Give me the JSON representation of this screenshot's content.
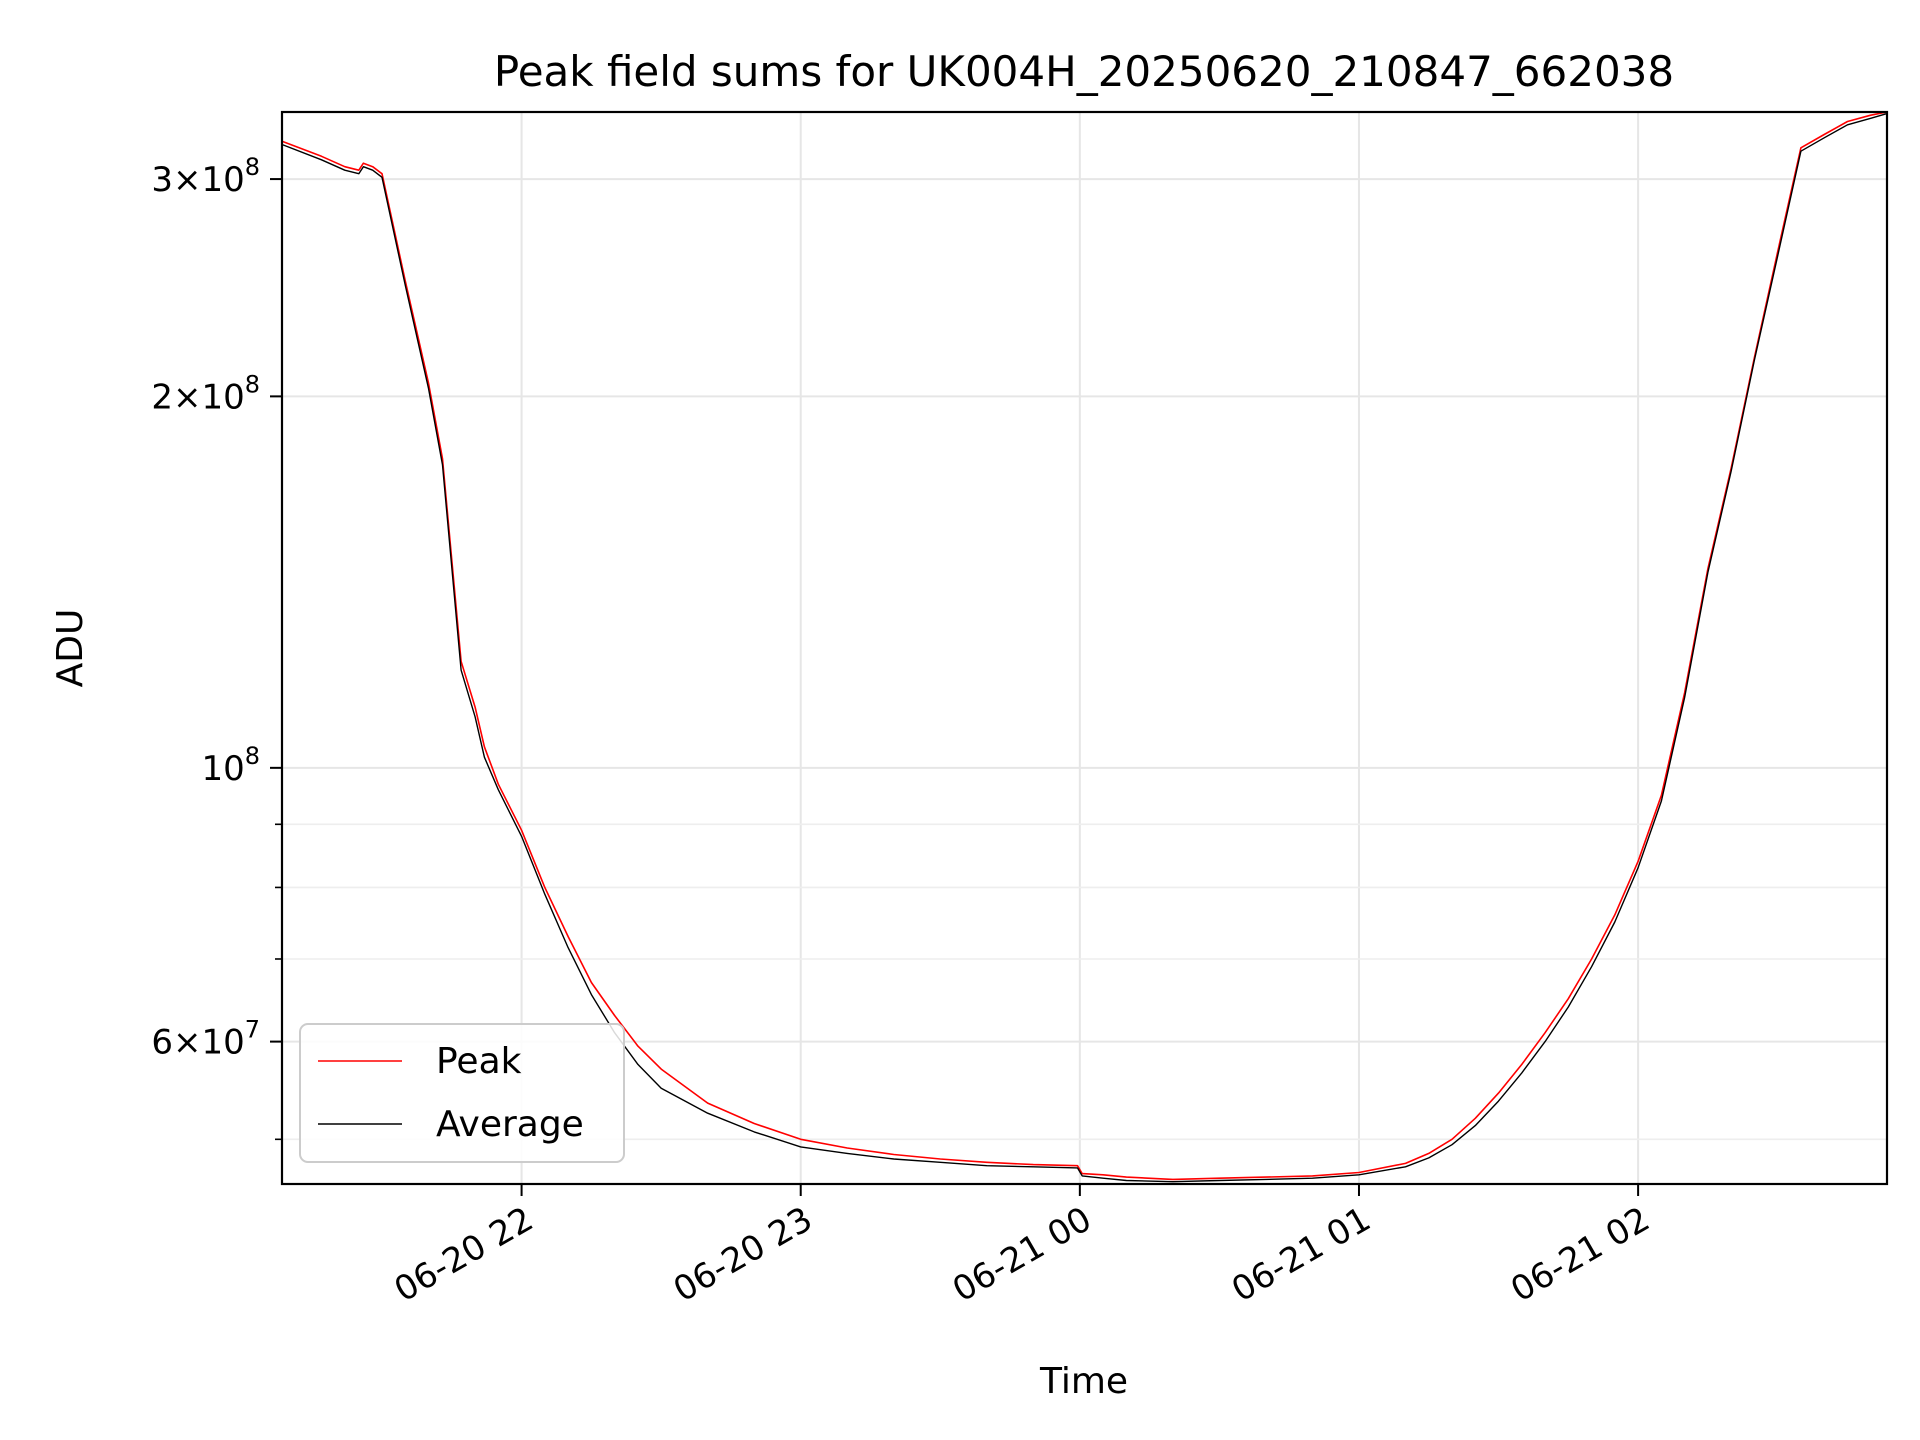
{
  "chart_data": {
    "type": "line",
    "title": "Peak field sums for UK004H_20250620_210847_662038",
    "xlabel": "Time",
    "ylabel": "ADU",
    "yscale": "log",
    "grid": true,
    "legend_position": "lower-left",
    "xlim": [
      "2025-06-20 21:08:30",
      "2025-06-21 02:53:30"
    ],
    "ylim": [
      46000000,
      340000000
    ],
    "x_ticks": [
      {
        "value": "2025-06-20 22:00",
        "label": "06-20 22"
      },
      {
        "value": "2025-06-20 23:00",
        "label": "06-20 23"
      },
      {
        "value": "2025-06-21 00:00",
        "label": "06-21 00"
      },
      {
        "value": "2025-06-21 01:00",
        "label": "06-21 01"
      },
      {
        "value": "2025-06-21 02:00",
        "label": "06-21 02"
      }
    ],
    "y_ticks": [
      {
        "value": 300000000,
        "mantissa": "3",
        "exponent": "8"
      },
      {
        "value": 200000000,
        "mantissa": "2",
        "exponent": "8"
      },
      {
        "value": 100000000,
        "mantissa": "",
        "exponent": "8"
      },
      {
        "value": 60000000,
        "mantissa": "6",
        "exponent": "7"
      }
    ],
    "y_minor_ticks": [
      50000000,
      70000000,
      80000000,
      90000000
    ],
    "series": [
      {
        "name": "Peak",
        "color": "#ff0000",
        "x": [
          "2025-06-20 21:08:30",
          "2025-06-20 21:17",
          "2025-06-20 21:22",
          "2025-06-20 21:25",
          "2025-06-20 21:26",
          "2025-06-20 21:28",
          "2025-06-20 21:30",
          "2025-06-20 21:35",
          "2025-06-20 21:40",
          "2025-06-20 21:43",
          "2025-06-20 21:47",
          "2025-06-20 21:50",
          "2025-06-20 21:52",
          "2025-06-20 21:55",
          "2025-06-20 22:00",
          "2025-06-20 22:05",
          "2025-06-20 22:10",
          "2025-06-20 22:15",
          "2025-06-20 22:20",
          "2025-06-20 22:25",
          "2025-06-20 22:30",
          "2025-06-20 22:40",
          "2025-06-20 22:50",
          "2025-06-20 23:00",
          "2025-06-20 23:10",
          "2025-06-20 23:20",
          "2025-06-20 23:30",
          "2025-06-20 23:40",
          "2025-06-20 23:50",
          "2025-06-20 23:59:30",
          "2025-06-21 00:00:30",
          "2025-06-21 00:05",
          "2025-06-21 00:10",
          "2025-06-21 00:20",
          "2025-06-21 00:30",
          "2025-06-21 00:40",
          "2025-06-21 00:50",
          "2025-06-21 01:00",
          "2025-06-21 01:10",
          "2025-06-21 01:15",
          "2025-06-21 01:20",
          "2025-06-21 01:25",
          "2025-06-21 01:30",
          "2025-06-21 01:35",
          "2025-06-21 01:40",
          "2025-06-21 01:45",
          "2025-06-21 01:50",
          "2025-06-21 01:55",
          "2025-06-21 02:00",
          "2025-06-21 02:05",
          "2025-06-21 02:10",
          "2025-06-21 02:15",
          "2025-06-21 02:20",
          "2025-06-21 02:25",
          "2025-06-21 02:30",
          "2025-06-21 02:35",
          "2025-06-21 02:40",
          "2025-06-21 02:45",
          "2025-06-21 02:50",
          "2025-06-21 02:53:30"
        ],
        "values": [
          322000000,
          313000000,
          307000000,
          305000000,
          309000000,
          307000000,
          303000000,
          248000000,
          205000000,
          178000000,
          122000000,
          112000000,
          104000000,
          97000000,
          89000000,
          80000000,
          73000000,
          67000000,
          63000000,
          59500000,
          57000000,
          53500000,
          51500000,
          50000000,
          49200000,
          48600000,
          48200000,
          47900000,
          47700000,
          47600000,
          46900000,
          46800000,
          46600000,
          46400000,
          46500000,
          46600000,
          46700000,
          47000000,
          47800000,
          48700000,
          50000000,
          52000000,
          54500000,
          57500000,
          61000000,
          65000000,
          70000000,
          76000000,
          84000000,
          95000000,
          115000000,
          145000000,
          175000000,
          215000000,
          262000000,
          318000000,
          326000000,
          334000000,
          338000000,
          340000000
        ]
      },
      {
        "name": "Average",
        "color": "#000000",
        "x": [
          "2025-06-20 21:08:30",
          "2025-06-20 21:17",
          "2025-06-20 21:22",
          "2025-06-20 21:25",
          "2025-06-20 21:26",
          "2025-06-20 21:28",
          "2025-06-20 21:30",
          "2025-06-20 21:35",
          "2025-06-20 21:40",
          "2025-06-20 21:43",
          "2025-06-20 21:47",
          "2025-06-20 21:50",
          "2025-06-20 21:52",
          "2025-06-20 21:55",
          "2025-06-20 22:00",
          "2025-06-20 22:05",
          "2025-06-20 22:10",
          "2025-06-20 22:15",
          "2025-06-20 22:20",
          "2025-06-20 22:25",
          "2025-06-20 22:30",
          "2025-06-20 22:40",
          "2025-06-20 22:50",
          "2025-06-20 23:00",
          "2025-06-20 23:10",
          "2025-06-20 23:20",
          "2025-06-20 23:30",
          "2025-06-20 23:40",
          "2025-06-20 23:50",
          "2025-06-20 23:59:30",
          "2025-06-21 00:00:30",
          "2025-06-21 00:05",
          "2025-06-21 00:10",
          "2025-06-21 00:20",
          "2025-06-21 00:30",
          "2025-06-21 00:40",
          "2025-06-21 00:50",
          "2025-06-21 01:00",
          "2025-06-21 01:10",
          "2025-06-21 01:15",
          "2025-06-21 01:20",
          "2025-06-21 01:25",
          "2025-06-21 01:30",
          "2025-06-21 01:35",
          "2025-06-21 01:40",
          "2025-06-21 01:45",
          "2025-06-21 01:50",
          "2025-06-21 01:55",
          "2025-06-21 02:00",
          "2025-06-21 02:05",
          "2025-06-21 02:10",
          "2025-06-21 02:15",
          "2025-06-21 02:20",
          "2025-06-21 02:25",
          "2025-06-21 02:30",
          "2025-06-21 02:35",
          "2025-06-21 02:40",
          "2025-06-21 02:45",
          "2025-06-21 02:50",
          "2025-06-21 02:53:30"
        ],
        "values": [
          320000000,
          311000000,
          305000000,
          303000000,
          307000000,
          305000000,
          301000000,
          246000000,
          203000000,
          176000000,
          120000000,
          110000000,
          102000000,
          96000000,
          88000000,
          79000000,
          71500000,
          65500000,
          61000000,
          57500000,
          55000000,
          52500000,
          50700000,
          49300000,
          48700000,
          48200000,
          47900000,
          47600000,
          47500000,
          47400000,
          46700000,
          46500000,
          46300000,
          46200000,
          46300000,
          46400000,
          46500000,
          46800000,
          47500000,
          48300000,
          49500000,
          51300000,
          53700000,
          56600000,
          60000000,
          64000000,
          69000000,
          75000000,
          83000000,
          94000000,
          114000000,
          144000000,
          174000000,
          214000000,
          260000000,
          316000000,
          324000000,
          332000000,
          336000000,
          339000000
        ]
      }
    ]
  }
}
